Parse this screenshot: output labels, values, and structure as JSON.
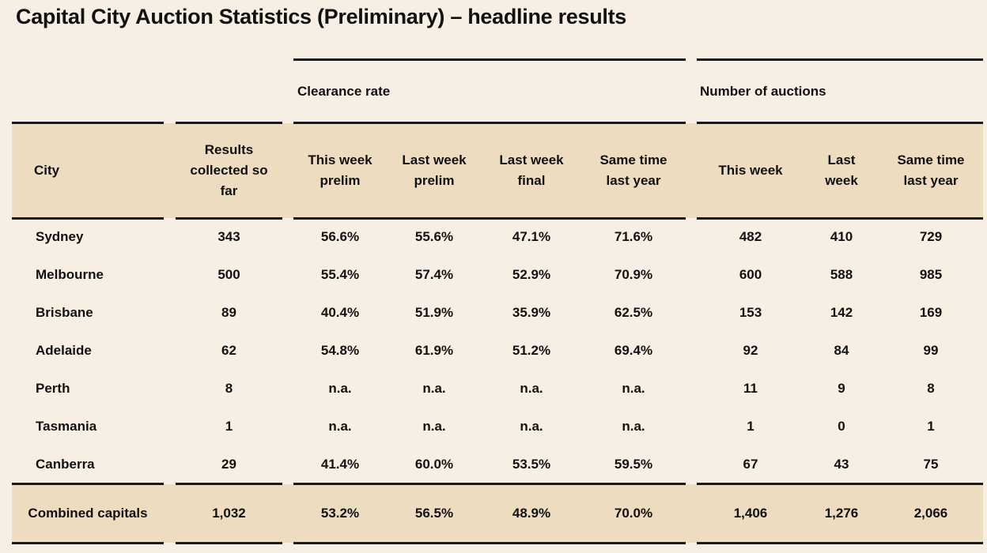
{
  "title": "Capital City Auction Statistics (Preliminary) – headline results",
  "groups": {
    "clearance_rate": "Clearance rate",
    "number_of_auctions": "Number of auctions"
  },
  "headers": [
    [
      "City"
    ],
    [
      "Results",
      "collected so",
      "far"
    ],
    [
      "This week",
      "prelim"
    ],
    [
      "Last week",
      "prelim"
    ],
    [
      "Last week",
      "final"
    ],
    [
      "Same time",
      "last year"
    ],
    [
      "This week"
    ],
    [
      "Last",
      "week"
    ],
    [
      "Same time",
      "last year"
    ]
  ],
  "rows": [
    [
      "Sydney",
      "343",
      "56.6%",
      "55.6%",
      "47.1%",
      "71.6%",
      "482",
      "410",
      "729"
    ],
    [
      "Melbourne",
      "500",
      "55.4%",
      "57.4%",
      "52.9%",
      "70.9%",
      "600",
      "588",
      "985"
    ],
    [
      "Brisbane",
      "89",
      "40.4%",
      "51.9%",
      "35.9%",
      "62.5%",
      "153",
      "142",
      "169"
    ],
    [
      "Adelaide",
      "62",
      "54.8%",
      "61.9%",
      "51.2%",
      "69.4%",
      "92",
      "84",
      "99"
    ],
    [
      "Perth",
      "8",
      "n.a.",
      "n.a.",
      "n.a.",
      "n.a.",
      "11",
      "9",
      "8"
    ],
    [
      "Tasmania",
      "1",
      "n.a.",
      "n.a.",
      "n.a.",
      "n.a.",
      "1",
      "0",
      "1"
    ],
    [
      "Canberra",
      "29",
      "41.4%",
      "60.0%",
      "53.5%",
      "59.5%",
      "67",
      "43",
      "75"
    ]
  ],
  "footer": [
    "Combined capitals",
    "1,032",
    "53.2%",
    "56.5%",
    "48.9%",
    "70.0%",
    "1,406",
    "1,276",
    "2,066"
  ]
}
